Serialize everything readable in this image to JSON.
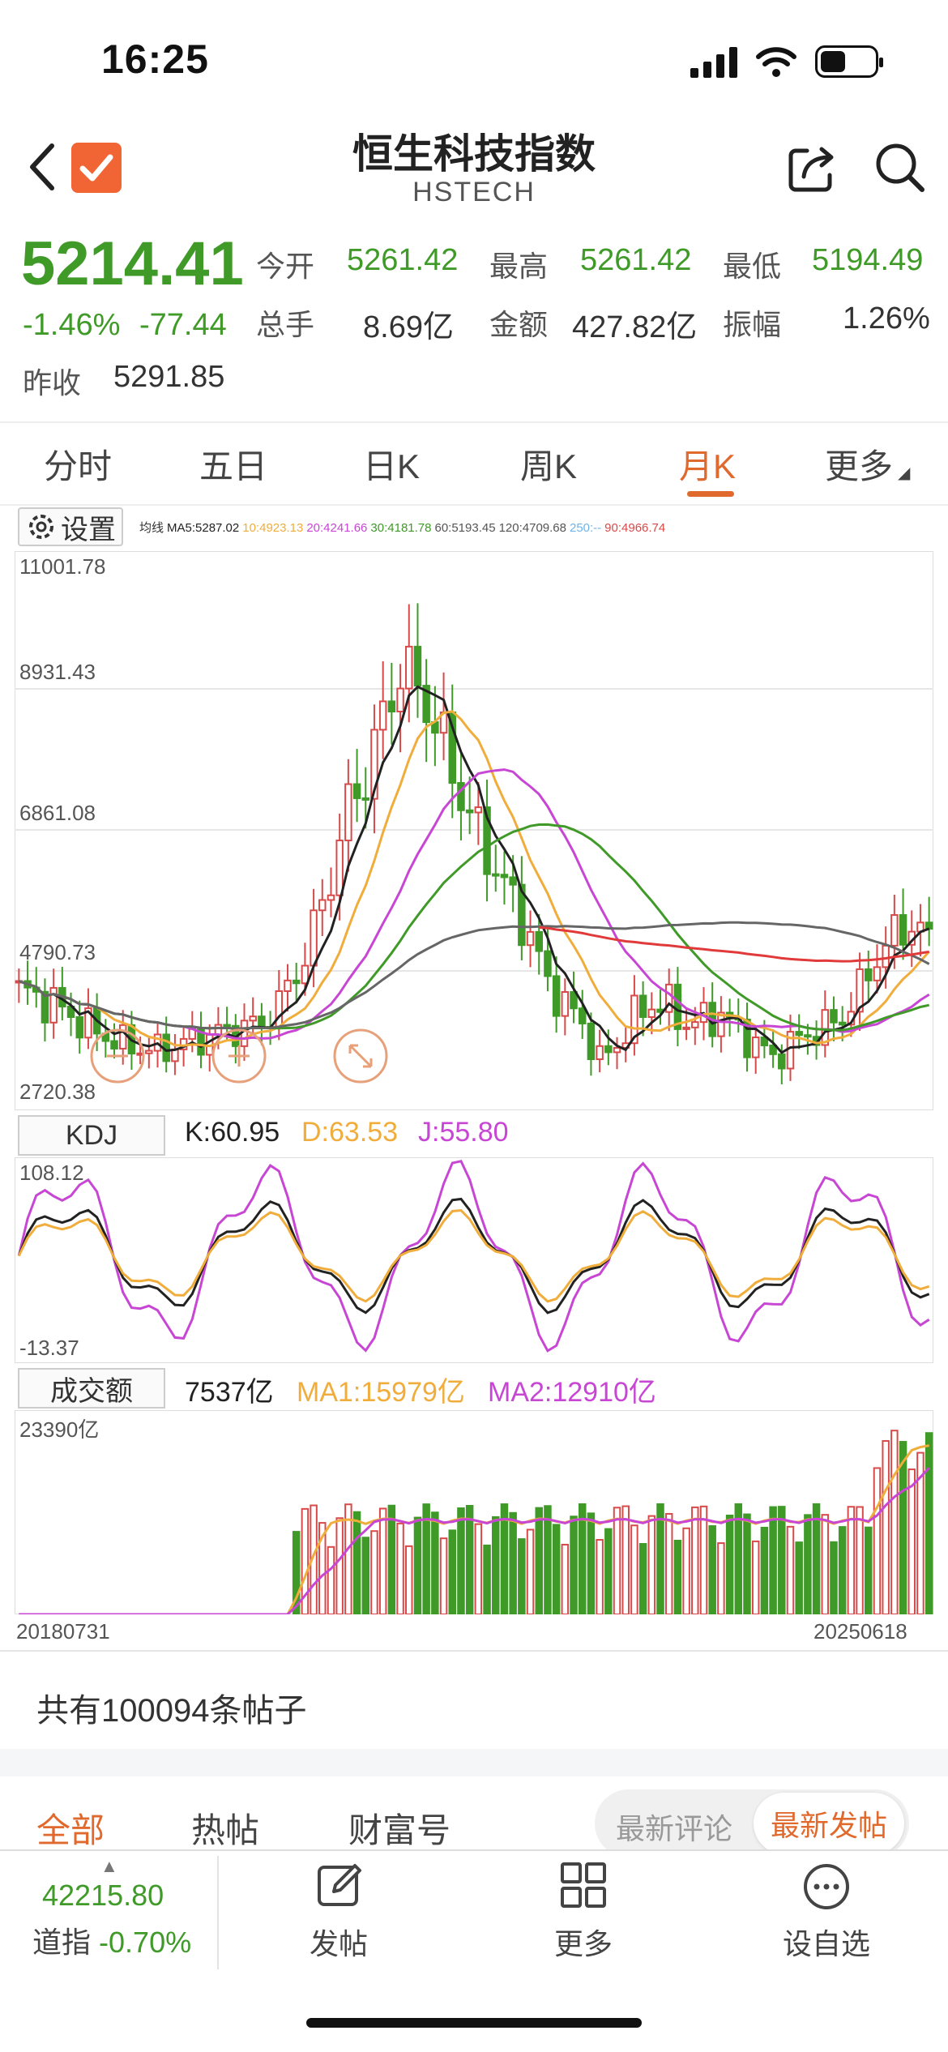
{
  "status_bar": {
    "time": "16:25"
  },
  "header": {
    "title": "恒生科技指数",
    "subtitle": "HSTECH"
  },
  "quote": {
    "price": "5214.41",
    "change_pct": "-1.46%",
    "change_abs": "-77.44",
    "prev_close_label": "昨收",
    "prev_close": "5291.85",
    "open_label": "今开",
    "open": "5261.42",
    "high_label": "最高",
    "high": "5261.42",
    "low_label": "最低",
    "low": "5194.49",
    "vol_label": "总手",
    "vol": "8.69亿",
    "amount_label": "金额",
    "amount": "427.82亿",
    "amp_label": "振幅",
    "amp": "1.26%"
  },
  "tabs": [
    {
      "label": "分时"
    },
    {
      "label": "五日"
    },
    {
      "label": "日K"
    },
    {
      "label": "周K"
    },
    {
      "label": "月K"
    },
    {
      "label": "更多"
    }
  ],
  "active_tab": "月K",
  "settings_label": "设置",
  "colors": {
    "up": "#d84a4a",
    "down": "#3f9a28",
    "accent": "#e0692e",
    "ma5": "#222222",
    "ma10": "#f0ad3c",
    "ma20": "#c846d4",
    "ma30": "#3f9a28",
    "ma60": "#666666",
    "ma120": "#e03a3a"
  },
  "ma_legend": {
    "prefix": "均线",
    "ma5": "MA5:5287.02",
    "ma10": "10:4923.13",
    "ma20": "20:4241.66",
    "ma30": "30:4181.78",
    "ma60": "60:5193.45",
    "ma120": "120:4709.68",
    "ma250": "250:--",
    "ma90": "90:4966.74"
  },
  "chart_data": [
    {
      "type": "candlestick",
      "y_ticks": [
        "11001.78",
        "8931.43",
        "6861.08",
        "4790.73",
        "2720.38"
      ],
      "ylim": [
        2720.38,
        11001.78
      ],
      "x_start": "20180731",
      "x_end": "20250618"
    },
    {
      "type": "line",
      "name": "KDJ",
      "k_label": "K:60.95",
      "d_label": "D:63.53",
      "j_label": "J:55.80",
      "y_ticks": [
        "108.12",
        "-13.37"
      ],
      "ylim": [
        -13.37,
        108.12
      ]
    },
    {
      "type": "bar",
      "name": "成交额",
      "value_label": "7537亿",
      "ma1_label": "MA1:15979亿",
      "ma2_label": "MA2:12910亿",
      "y_ticks": [
        "23390亿"
      ]
    }
  ],
  "x_axis": {
    "start": "20180731",
    "end": "20250618"
  },
  "posts": {
    "count_text": "共有100094条帖子"
  },
  "filters": [
    {
      "label": "全部"
    },
    {
      "label": "热帖"
    },
    {
      "label": "财富号"
    }
  ],
  "sort": {
    "latest_comment": "最新评论",
    "latest_post": "最新发帖"
  },
  "bottom_bar": {
    "index_value": "42215.80",
    "index_name": "道指",
    "index_change": "-0.70%",
    "post_label": "发帖",
    "more_label": "更多",
    "watch_label": "设自选"
  }
}
